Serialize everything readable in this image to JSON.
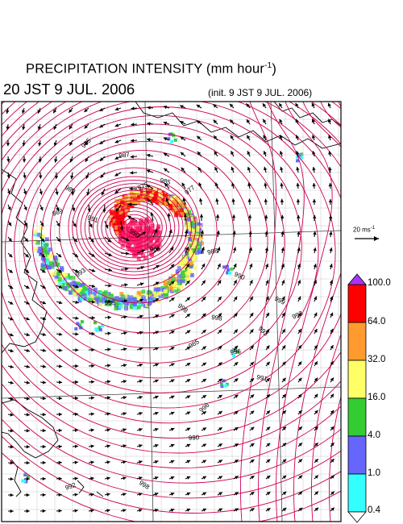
{
  "title": {
    "text": "PRECIPITATION INTENSITY (mm hour",
    "exponent": "-1",
    "close": ")"
  },
  "valid_time": "20 JST 9 JUL. 2006",
  "init_time": "(init. 9 JST 9 JUL. 2006)",
  "wind_reference": {
    "text": "20 ms",
    "exponent": "-1"
  },
  "colorbar": {
    "levels": [
      "100.0",
      "64.0",
      "32.0",
      "16.0",
      "4.0",
      "1.0",
      "0.4"
    ],
    "colors": [
      "#ff0000",
      "#ff9a2e",
      "#ffff66",
      "#33cc33",
      "#6666ff",
      "#33ffff"
    ],
    "overflow_color": "#aa33ff",
    "underflow_color": "#ffffff"
  },
  "map": {
    "contour_color": "#cc0055",
    "coast_color": "#000000",
    "isobar_labels": [
      "985",
      "987",
      "989",
      "975",
      "985",
      "977",
      "965",
      "950",
      "989",
      "991",
      "993",
      "995",
      "998",
      "988",
      "990",
      "985",
      "998",
      "993",
      "996",
      "999",
      "993",
      "991",
      "996",
      "990",
      "998",
      "992"
    ],
    "cyclone_center": {
      "lon_frac": 0.39,
      "lat_frac": 0.3
    }
  }
}
